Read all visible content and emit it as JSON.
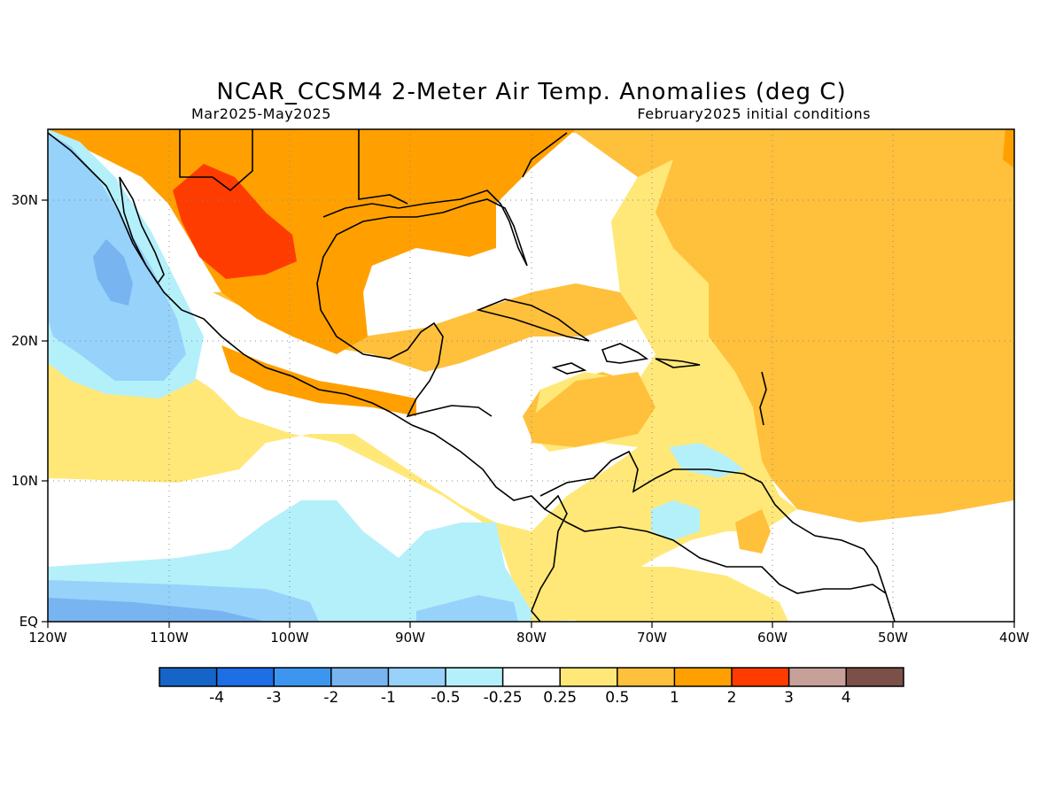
{
  "title": "NCAR_CCSM4 2-Meter Air Temp. Anomalies (deg C)",
  "subtitle_left": "Mar2025-May2025",
  "subtitle_right": "February2025 initial conditions",
  "axes": {
    "x_ticks": [
      "120W",
      "110W",
      "100W",
      "90W",
      "80W",
      "70W",
      "60W",
      "50W",
      "40W"
    ],
    "y_ticks": [
      "30N",
      "20N",
      "10N",
      "EQ"
    ],
    "lon_range": [
      -120,
      -40
    ],
    "lat_range": [
      0,
      35
    ],
    "grid": "dotted"
  },
  "colors": {
    "blue_4": "#1565c8",
    "blue_3": "#1e6ee6",
    "blue_2": "#3c96f0",
    "blue_1": "#78b4f0",
    "blue_05": "#96d2fa",
    "blue_025": "#b4f0fa",
    "neutral": "#ffffff",
    "orange_025": "#ffe878",
    "orange_05": "#ffc03c",
    "orange_1": "#ffa000",
    "orange_2": "#ff3c00",
    "red_3": "#c8a09a",
    "brown_4": "#7a5048"
  },
  "colorbar": {
    "labels": [
      "-4",
      "-3",
      "-2",
      "-1",
      "-0.5",
      "-0.25",
      "0.25",
      "0.5",
      "1",
      "2",
      "3",
      "4"
    ],
    "boxes": [
      "#1565c8",
      "#1e6ee6",
      "#3c96f0",
      "#78b4f0",
      "#96d2fa",
      "#b4f0fa",
      "#ffffff",
      "#ffe878",
      "#ffc03c",
      "#ffa000",
      "#ff3c00",
      "#c8a09a",
      "#7a5048"
    ]
  }
}
